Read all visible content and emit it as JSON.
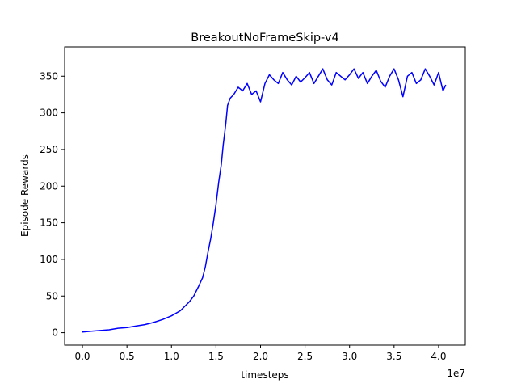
{
  "chart_data": {
    "type": "line",
    "title": "BreakoutNoFrameSkip-v4",
    "xlabel": "timesteps",
    "ylabel": "Episode Rewards",
    "x_offset_label": "1e7",
    "xlim": [
      -2000000,
      43000000
    ],
    "ylim": [
      -17,
      390
    ],
    "x_ticks": [
      0,
      5000000,
      10000000,
      15000000,
      20000000,
      25000000,
      30000000,
      35000000,
      40000000
    ],
    "x_tick_labels": [
      "0.0",
      "0.5",
      "1.0",
      "1.5",
      "2.0",
      "2.5",
      "3.0",
      "3.5",
      "4.0"
    ],
    "y_ticks": [
      0,
      50,
      100,
      150,
      200,
      250,
      300,
      350
    ],
    "y_tick_labels": [
      "0",
      "50",
      "100",
      "150",
      "200",
      "250",
      "300",
      "350"
    ],
    "grid": false,
    "series": [
      {
        "color": "#0000ff",
        "x": [
          0,
          1000000,
          2000000,
          3000000,
          4000000,
          5000000,
          6000000,
          7000000,
          8000000,
          9000000,
          10000000,
          11000000,
          11500000,
          12000000,
          12500000,
          13000000,
          13500000,
          13800000,
          14100000,
          14400000,
          14700000,
          15000000,
          15300000,
          15600000,
          15800000,
          16100000,
          16300000,
          16600000,
          17000000,
          17500000,
          18000000,
          18500000,
          19000000,
          19500000,
          20000000,
          20500000,
          21000000,
          21500000,
          22000000,
          22500000,
          23000000,
          23500000,
          24000000,
          24500000,
          25000000,
          25500000,
          26000000,
          26500000,
          27000000,
          27500000,
          28000000,
          28500000,
          29000000,
          29500000,
          30000000,
          30500000,
          31000000,
          31500000,
          32000000,
          32500000,
          33000000,
          33500000,
          34000000,
          34500000,
          35000000,
          35500000,
          36000000,
          36500000,
          37000000,
          37500000,
          38000000,
          38500000,
          39000000,
          39500000,
          40000000,
          40500000,
          40800000
        ],
        "y": [
          1,
          2,
          3,
          4,
          6,
          7,
          9,
          11,
          14,
          18,
          23,
          30,
          36,
          42,
          50,
          62,
          75,
          90,
          110,
          128,
          150,
          175,
          205,
          230,
          255,
          285,
          310,
          320,
          325,
          335,
          330,
          340,
          325,
          330,
          315,
          340,
          352,
          345,
          340,
          355,
          345,
          338,
          350,
          342,
          348,
          355,
          340,
          350,
          360,
          345,
          338,
          355,
          350,
          345,
          352,
          360,
          347,
          355,
          340,
          350,
          358,
          343,
          335,
          350,
          360,
          345,
          322,
          350,
          355,
          340,
          345,
          360,
          350,
          338,
          355,
          330,
          338
        ]
      }
    ]
  }
}
